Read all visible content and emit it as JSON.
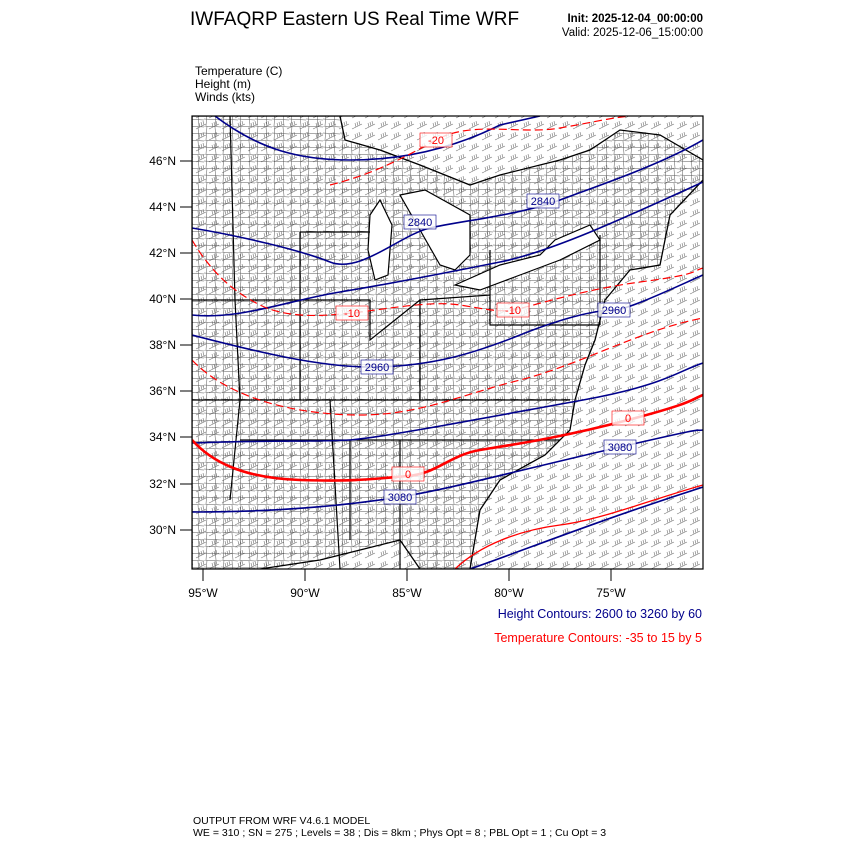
{
  "header": {
    "title": "IWFAQRP Eastern US Real Time WRF",
    "init": "Init: 2025-12-04_00:00:00",
    "valid": "Valid: 2025-12-06_15:00:00"
  },
  "variables": [
    "Temperature   (C)",
    "Height   (m)",
    "Winds   (kts)"
  ],
  "map": {
    "lat_labels": [
      "46°N",
      "44°N",
      "42°N",
      "40°N",
      "38°N",
      "36°N",
      "34°N",
      "32°N",
      "30°N"
    ],
    "lon_labels": [
      "95°W",
      "90°W",
      "85°W",
      "80°W",
      "75°W"
    ],
    "height_labels": [
      "2840",
      "2840",
      "2960",
      "2960",
      "3080",
      "3080"
    ],
    "temp_labels": [
      "-20",
      "-10",
      "-10",
      "0",
      "0"
    ],
    "colors": {
      "height": "#00008b",
      "temperature": "#ff0000",
      "boundaries": "#000000"
    }
  },
  "legend": {
    "height": "Height Contours: 2600 to 3260 by 60",
    "temperature": "Temperature Contours: -35 to 15 by 5"
  },
  "footer": {
    "line1": "OUTPUT FROM WRF V4.6.1 MODEL",
    "line2": "WE = 310 ; SN = 275 ; Levels = 38 ; Dis = 8km ; Phys Opt = 8 ; PBL Opt = 1 ; Cu Opt = 3"
  }
}
